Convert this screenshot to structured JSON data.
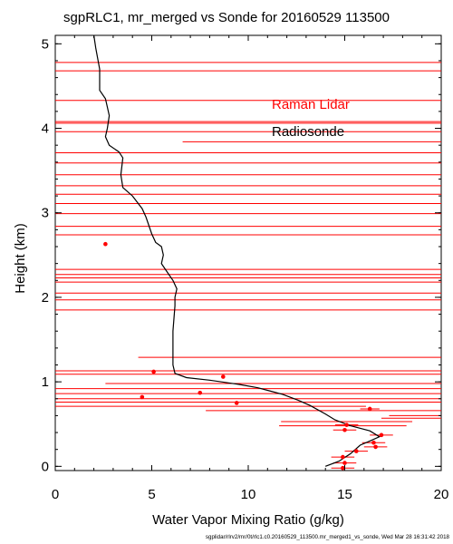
{
  "chart_data": {
    "type": "scatter",
    "title": "sgpRLC1, mr_merged vs Sonde for 20160529 113500",
    "xlabel": "Water Vapor Mixing Ratio (g/kg)",
    "ylabel": "Height (km)",
    "xlim": [
      0,
      20
    ],
    "ylim": [
      -0.05,
      5.1
    ],
    "x_ticks": [
      "0",
      "5",
      "10",
      "15",
      "20"
    ],
    "y_ticks": [
      "0",
      "1",
      "2",
      "3",
      "4",
      "5"
    ],
    "footer": "sgplidar/rlrv2/mr/0t/rlc1.c0.20160529_113500.mr_merged1_vs_sonde, Wed Mar 28 16:31:42 2018",
    "colors": {
      "lidar": "#ff0000",
      "sonde": "#000000",
      "axes": "#000000"
    },
    "legend_position": "top-right",
    "series": [
      {
        "name": "Raman Lidar",
        "color": "#ff0000",
        "points": [
          [
            2.6,
            2.63
          ],
          [
            5.1,
            1.12
          ],
          [
            8.7,
            1.06
          ],
          [
            4.5,
            0.82
          ],
          [
            7.5,
            0.87
          ],
          [
            9.4,
            0.75
          ],
          [
            16.3,
            0.68
          ],
          [
            15.1,
            0.49
          ],
          [
            15.0,
            0.43
          ],
          [
            16.9,
            0.37
          ],
          [
            16.5,
            0.28
          ],
          [
            16.6,
            0.23
          ],
          [
            15.6,
            0.18
          ],
          [
            14.9,
            0.11
          ],
          [
            15.0,
            0.04
          ],
          [
            14.9,
            -0.02
          ]
        ],
        "error_bars": [
          [
            2.6,
            2.63,
            0,
            0
          ],
          [
            5.1,
            1.12,
            0,
            0
          ],
          [
            8.7,
            1.06,
            0,
            0
          ],
          [
            4.5,
            0.82,
            0,
            0
          ],
          [
            7.5,
            0.87,
            0,
            0
          ],
          [
            9.4,
            0.75,
            0,
            0
          ],
          [
            16.3,
            0.68,
            15.8,
            16.8
          ],
          [
            15.1,
            0.49,
            14.5,
            15.7
          ],
          [
            15.0,
            0.43,
            14.4,
            15.6
          ],
          [
            16.9,
            0.37,
            16.3,
            17.5
          ],
          [
            16.5,
            0.28,
            15.9,
            17.1
          ],
          [
            16.6,
            0.23,
            16.0,
            17.2
          ],
          [
            15.6,
            0.18,
            15.0,
            16.2
          ],
          [
            14.9,
            0.11,
            14.3,
            15.5
          ],
          [
            15.0,
            0.04,
            14.4,
            15.6
          ],
          [
            14.9,
            -0.02,
            14.3,
            15.5
          ]
        ],
        "range_lines": [
          [
            0,
            20,
            4.78
          ],
          [
            0,
            20,
            4.68
          ],
          [
            0,
            20,
            4.33
          ],
          [
            0,
            20,
            4.08
          ],
          [
            0,
            20,
            4.06
          ],
          [
            0,
            20,
            3.96
          ],
          [
            6.6,
            20,
            3.84
          ],
          [
            0,
            20,
            3.71
          ],
          [
            0,
            20,
            3.59
          ],
          [
            0,
            20,
            3.45
          ],
          [
            0,
            20,
            3.32
          ],
          [
            0,
            20,
            3.22
          ],
          [
            0,
            20,
            3.11
          ],
          [
            0,
            20,
            2.99
          ],
          [
            0,
            20,
            2.84
          ],
          [
            0,
            20,
            2.74
          ],
          [
            0,
            20,
            2.33
          ],
          [
            0,
            20,
            2.27
          ],
          [
            0,
            20,
            2.23
          ],
          [
            0,
            20,
            2.18
          ],
          [
            0,
            20,
            2.05
          ],
          [
            0,
            20,
            1.97
          ],
          [
            0,
            20,
            1.85
          ],
          [
            4.3,
            20,
            1.29
          ],
          [
            0,
            20,
            1.13
          ],
          [
            0,
            20,
            1.09
          ],
          [
            2.6,
            20,
            0.98
          ],
          [
            0,
            20,
            0.92
          ],
          [
            0,
            20,
            0.86
          ],
          [
            0,
            20,
            0.8
          ],
          [
            0,
            20,
            0.76
          ],
          [
            0,
            16.1,
            0.71
          ],
          [
            7.8,
            20,
            0.66
          ],
          [
            17.3,
            20,
            0.6
          ],
          [
            16.9,
            20,
            0.57
          ],
          [
            11.7,
            18.5,
            0.53
          ],
          [
            11.6,
            18.2,
            0.48
          ]
        ]
      },
      {
        "name": "Radiosonde",
        "color": "#000000",
        "profile": [
          [
            2.0,
            5.1
          ],
          [
            2.1,
            4.95
          ],
          [
            2.3,
            4.7
          ],
          [
            2.3,
            4.45
          ],
          [
            2.6,
            4.35
          ],
          [
            2.8,
            4.15
          ],
          [
            2.7,
            4.0
          ],
          [
            2.6,
            3.9
          ],
          [
            2.8,
            3.8
          ],
          [
            3.3,
            3.72
          ],
          [
            3.5,
            3.65
          ],
          [
            3.4,
            3.45
          ],
          [
            3.5,
            3.3
          ],
          [
            4.0,
            3.2
          ],
          [
            4.5,
            3.05
          ],
          [
            4.7,
            2.95
          ],
          [
            5.0,
            2.75
          ],
          [
            5.2,
            2.65
          ],
          [
            5.5,
            2.6
          ],
          [
            5.6,
            2.5
          ],
          [
            5.5,
            2.4
          ],
          [
            5.8,
            2.3
          ],
          [
            6.1,
            2.2
          ],
          [
            6.3,
            2.1
          ],
          [
            6.2,
            2.0
          ],
          [
            6.2,
            1.9
          ],
          [
            6.1,
            1.6
          ],
          [
            6.1,
            1.4
          ],
          [
            6.1,
            1.3
          ],
          [
            6.1,
            1.2
          ],
          [
            6.2,
            1.1
          ],
          [
            6.8,
            1.05
          ],
          [
            8.0,
            1.02
          ],
          [
            9.5,
            0.97
          ],
          [
            10.5,
            0.93
          ],
          [
            11.0,
            0.9
          ],
          [
            11.8,
            0.85
          ],
          [
            12.6,
            0.78
          ],
          [
            13.2,
            0.72
          ],
          [
            14.0,
            0.62
          ],
          [
            14.5,
            0.55
          ],
          [
            15.3,
            0.48
          ],
          [
            16.3,
            0.42
          ],
          [
            16.8,
            0.35
          ],
          [
            16.3,
            0.3
          ],
          [
            15.8,
            0.25
          ],
          [
            15.3,
            0.15
          ],
          [
            14.7,
            0.06
          ],
          [
            14.0,
            0.0
          ]
        ]
      }
    ]
  }
}
